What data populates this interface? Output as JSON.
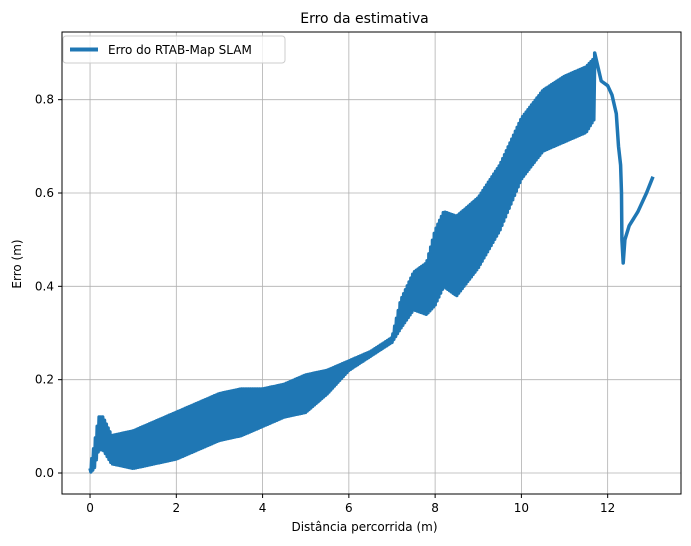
{
  "chart_data": {
    "type": "line",
    "title": "Erro da estimativa",
    "xlabel": "Distância percorrida (m)",
    "ylabel": "Erro (m)",
    "xlim": [
      -0.65,
      13.7
    ],
    "ylim": [
      -0.045,
      0.945
    ],
    "xticks": [
      0,
      2,
      4,
      6,
      8,
      10,
      12
    ],
    "yticks": [
      0.0,
      0.2,
      0.4,
      0.6,
      0.8
    ],
    "xtick_labels": [
      "0",
      "2",
      "4",
      "6",
      "8",
      "10",
      "12"
    ],
    "ytick_labels": [
      "0.0",
      "0.2",
      "0.4",
      "0.6",
      "0.8"
    ],
    "grid": true,
    "legend_position": "top-left",
    "series": [
      {
        "name": "Erro do RTAB-Map SLAM",
        "color": "#1f77b4",
        "envelope": [
          {
            "x": 0.0,
            "lo": 0.0,
            "hi": 0.01
          },
          {
            "x": 0.1,
            "lo": 0.01,
            "hi": 0.06
          },
          {
            "x": 0.2,
            "lo": 0.05,
            "hi": 0.12
          },
          {
            "x": 0.3,
            "lo": 0.05,
            "hi": 0.12
          },
          {
            "x": 0.5,
            "lo": 0.02,
            "hi": 0.08
          },
          {
            "x": 1.0,
            "lo": 0.01,
            "hi": 0.09
          },
          {
            "x": 1.5,
            "lo": 0.02,
            "hi": 0.11
          },
          {
            "x": 2.0,
            "lo": 0.03,
            "hi": 0.13
          },
          {
            "x": 2.5,
            "lo": 0.05,
            "hi": 0.15
          },
          {
            "x": 3.0,
            "lo": 0.07,
            "hi": 0.17
          },
          {
            "x": 3.5,
            "lo": 0.08,
            "hi": 0.18
          },
          {
            "x": 4.0,
            "lo": 0.1,
            "hi": 0.18
          },
          {
            "x": 4.5,
            "lo": 0.12,
            "hi": 0.19
          },
          {
            "x": 5.0,
            "lo": 0.13,
            "hi": 0.21
          },
          {
            "x": 5.5,
            "lo": 0.17,
            "hi": 0.22
          },
          {
            "x": 6.0,
            "lo": 0.22,
            "hi": 0.24
          },
          {
            "x": 6.5,
            "lo": 0.25,
            "hi": 0.26
          },
          {
            "x": 7.0,
            "lo": 0.28,
            "hi": 0.29
          },
          {
            "x": 7.2,
            "lo": 0.31,
            "hi": 0.37
          },
          {
            "x": 7.5,
            "lo": 0.35,
            "hi": 0.43
          },
          {
            "x": 7.8,
            "lo": 0.34,
            "hi": 0.45
          },
          {
            "x": 8.0,
            "lo": 0.36,
            "hi": 0.52
          },
          {
            "x": 8.2,
            "lo": 0.4,
            "hi": 0.56
          },
          {
            "x": 8.5,
            "lo": 0.38,
            "hi": 0.55
          },
          {
            "x": 9.0,
            "lo": 0.44,
            "hi": 0.59
          },
          {
            "x": 9.5,
            "lo": 0.52,
            "hi": 0.66
          },
          {
            "x": 10.0,
            "lo": 0.63,
            "hi": 0.76
          },
          {
            "x": 10.5,
            "lo": 0.69,
            "hi": 0.82
          },
          {
            "x": 11.0,
            "lo": 0.71,
            "hi": 0.85
          },
          {
            "x": 11.5,
            "lo": 0.73,
            "hi": 0.87
          },
          {
            "x": 11.7,
            "lo": 0.76,
            "hi": 0.89
          }
        ],
        "tail": [
          {
            "x": 11.7,
            "y": 0.9
          },
          {
            "x": 11.85,
            "y": 0.84
          },
          {
            "x": 12.0,
            "y": 0.83
          },
          {
            "x": 12.1,
            "y": 0.81
          },
          {
            "x": 12.2,
            "y": 0.77
          },
          {
            "x": 12.25,
            "y": 0.7
          },
          {
            "x": 12.3,
            "y": 0.66
          },
          {
            "x": 12.32,
            "y": 0.6
          },
          {
            "x": 12.33,
            "y": 0.5
          },
          {
            "x": 12.36,
            "y": 0.45
          },
          {
            "x": 12.4,
            "y": 0.5
          },
          {
            "x": 12.5,
            "y": 0.53
          },
          {
            "x": 12.7,
            "y": 0.56
          },
          {
            "x": 12.9,
            "y": 0.6
          },
          {
            "x": 13.05,
            "y": 0.635
          }
        ]
      }
    ]
  }
}
